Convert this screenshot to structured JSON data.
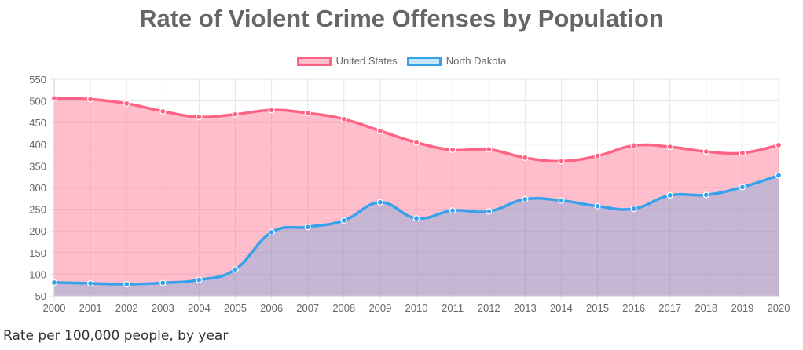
{
  "chart_data": {
    "type": "line",
    "title": "Rate of Violent Crime Offenses by Population",
    "caption": "Rate per 100,000 people, by year",
    "x": [
      "2000",
      "2001",
      "2002",
      "2003",
      "2004",
      "2005",
      "2006",
      "2007",
      "2008",
      "2009",
      "2010",
      "2011",
      "2012",
      "2013",
      "2014",
      "2015",
      "2016",
      "2017",
      "2018",
      "2019",
      "2020"
    ],
    "ylim": [
      50,
      550
    ],
    "yticks": [
      50,
      100,
      150,
      200,
      250,
      300,
      350,
      400,
      450,
      500,
      550
    ],
    "grid": true,
    "legend_position": "top",
    "series": [
      {
        "name": "United States",
        "color": "#ff6384",
        "fill": "rgba(255,99,132,0.42)",
        "values": [
          506,
          504,
          494,
          476,
          463,
          469,
          479,
          472,
          458,
          431,
          404,
          387,
          388,
          369,
          361,
          373,
          397,
          394,
          383,
          380,
          398
        ]
      },
      {
        "name": "North Dakota",
        "color": "#36a2eb",
        "fill": "rgba(54,162,235,0.28)",
        "values": [
          81,
          79,
          77,
          80,
          87,
          111,
          197,
          209,
          224,
          266,
          229,
          247,
          245,
          273,
          270,
          257,
          251,
          282,
          283,
          301,
          328
        ]
      }
    ]
  }
}
